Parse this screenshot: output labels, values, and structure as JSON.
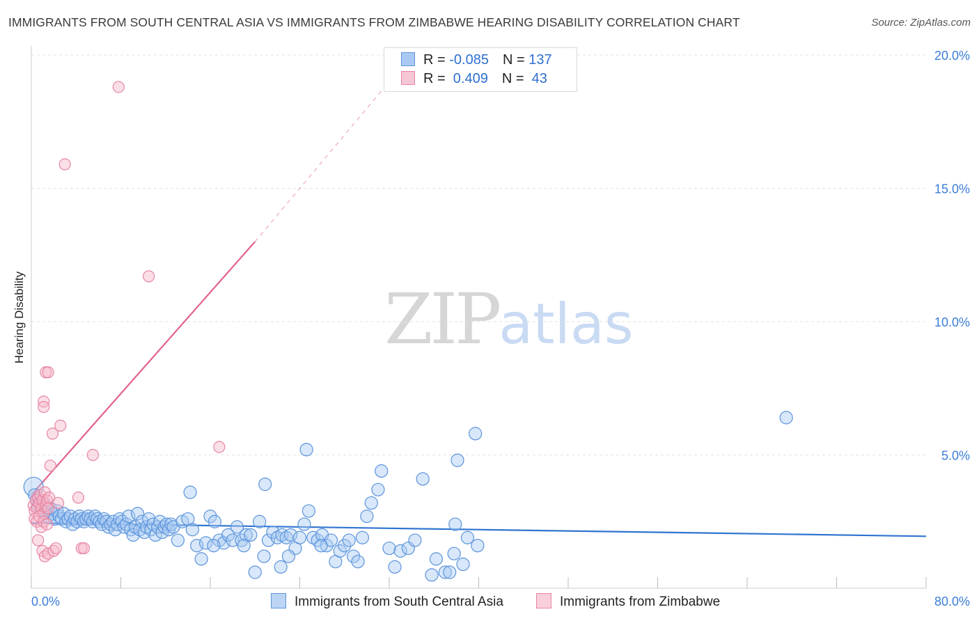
{
  "title": "IMMIGRANTS FROM SOUTH CENTRAL ASIA VS IMMIGRANTS FROM ZIMBABWE HEARING DISABILITY CORRELATION CHART",
  "source": "Source: ZipAtlas.com",
  "watermark": {
    "part1": "ZIP",
    "part2": "atlas"
  },
  "legend": {
    "row1": {
      "r_label": "R = ",
      "r_value": "-0.085",
      "n_label": "N = ",
      "n_value": "137"
    },
    "row2": {
      "r_label": "R = ",
      "r_value": " 0.409",
      "n_label": "N = ",
      "n_value": " 43"
    }
  },
  "colors": {
    "blue_fill": "#a9c9f2",
    "blue_stroke": "#5b94dc",
    "blue_line": "#2f74d0",
    "pink_fill": "#f7b8c9",
    "pink_stroke": "#e685a2",
    "pink_line": "#e2628c",
    "grid": "#e2e2e2",
    "axis_text": "#3b7dd8"
  },
  "chart_data": {
    "type": "scatter",
    "title": "IMMIGRANTS FROM SOUTH CENTRAL ASIA VS IMMIGRANTS FROM ZIMBABWE HEARING DISABILITY CORRELATION CHART",
    "xlabel": "",
    "ylabel": "Hearing Disability",
    "xlim": [
      0,
      80
    ],
    "ylim": [
      0,
      20
    ],
    "x_tick_labels": [
      "0.0%",
      "80.0%"
    ],
    "y_ticks": [
      5,
      10,
      15,
      20
    ],
    "y_tick_labels": [
      "5.0%",
      "10.0%",
      "15.0%",
      "20.0%"
    ],
    "grid": true,
    "series": [
      {
        "name": "Immigrants from South Central Asia",
        "color": "blue",
        "r": -0.085,
        "n": 137,
        "trend": {
          "x0": 0,
          "y0": 2.45,
          "x1": 80,
          "y1": 1.95
        },
        "points": [
          [
            0.2,
            3.8
          ],
          [
            0.3,
            3.5
          ],
          [
            0.5,
            3.3
          ],
          [
            0.6,
            3.1
          ],
          [
            0.8,
            3.0
          ],
          [
            1.0,
            2.9
          ],
          [
            1.1,
            3.2
          ],
          [
            1.3,
            2.8
          ],
          [
            1.5,
            2.7
          ],
          [
            1.7,
            3.0
          ],
          [
            1.9,
            2.8
          ],
          [
            2.1,
            2.6
          ],
          [
            2.3,
            2.9
          ],
          [
            2.5,
            2.7
          ],
          [
            2.7,
            2.6
          ],
          [
            2.9,
            2.8
          ],
          [
            3.1,
            2.5
          ],
          [
            3.3,
            2.6
          ],
          [
            3.5,
            2.7
          ],
          [
            3.7,
            2.4
          ],
          [
            3.9,
            2.6
          ],
          [
            4.1,
            2.5
          ],
          [
            4.3,
            2.7
          ],
          [
            4.5,
            2.6
          ],
          [
            4.7,
            2.5
          ],
          [
            4.9,
            2.6
          ],
          [
            5.1,
            2.7
          ],
          [
            5.3,
            2.6
          ],
          [
            5.5,
            2.5
          ],
          [
            5.7,
            2.7
          ],
          [
            5.9,
            2.6
          ],
          [
            6.1,
            2.5
          ],
          [
            6.3,
            2.4
          ],
          [
            6.5,
            2.6
          ],
          [
            6.7,
            2.5
          ],
          [
            6.9,
            2.3
          ],
          [
            7.1,
            2.4
          ],
          [
            7.3,
            2.5
          ],
          [
            7.5,
            2.2
          ],
          [
            7.7,
            2.4
          ],
          [
            7.9,
            2.6
          ],
          [
            8.1,
            2.5
          ],
          [
            8.3,
            2.3
          ],
          [
            8.5,
            2.4
          ],
          [
            8.7,
            2.7
          ],
          [
            8.9,
            2.2
          ],
          [
            9.1,
            2.0
          ],
          [
            9.3,
            2.3
          ],
          [
            9.5,
            2.8
          ],
          [
            9.7,
            2.2
          ],
          [
            9.9,
            2.5
          ],
          [
            10.1,
            2.1
          ],
          [
            10.3,
            2.3
          ],
          [
            10.5,
            2.6
          ],
          [
            10.7,
            2.2
          ],
          [
            10.9,
            2.4
          ],
          [
            11.1,
            2.0
          ],
          [
            11.3,
            2.3
          ],
          [
            11.5,
            2.5
          ],
          [
            11.7,
            2.1
          ],
          [
            11.9,
            2.3
          ],
          [
            12.1,
            2.4
          ],
          [
            12.3,
            2.2
          ],
          [
            12.5,
            2.4
          ],
          [
            12.7,
            2.3
          ],
          [
            13.1,
            1.8
          ],
          [
            13.5,
            2.5
          ],
          [
            14.0,
            2.6
          ],
          [
            14.4,
            2.2
          ],
          [
            14.8,
            1.6
          ],
          [
            15.2,
            1.1
          ],
          [
            15.6,
            1.7
          ],
          [
            16.0,
            2.7
          ],
          [
            16.4,
            2.5
          ],
          [
            16.8,
            1.8
          ],
          [
            17.2,
            1.7
          ],
          [
            17.6,
            2.0
          ],
          [
            18.0,
            1.8
          ],
          [
            18.4,
            2.3
          ],
          [
            18.8,
            1.8
          ],
          [
            19.2,
            2.0
          ],
          [
            19.6,
            2.0
          ],
          [
            20.0,
            0.6
          ],
          [
            20.4,
            2.5
          ],
          [
            20.8,
            1.2
          ],
          [
            21.2,
            1.8
          ],
          [
            21.6,
            2.1
          ],
          [
            22.0,
            1.9
          ],
          [
            22.4,
            2.0
          ],
          [
            22.8,
            1.9
          ],
          [
            23.2,
            2.0
          ],
          [
            23.6,
            1.5
          ],
          [
            24.0,
            1.9
          ],
          [
            24.4,
            2.4
          ],
          [
            24.8,
            2.9
          ],
          [
            25.2,
            1.9
          ],
          [
            25.6,
            1.8
          ],
          [
            26.0,
            2.0
          ],
          [
            26.4,
            1.6
          ],
          [
            26.8,
            1.8
          ],
          [
            27.2,
            1.0
          ],
          [
            27.6,
            1.4
          ],
          [
            28.0,
            1.6
          ],
          [
            28.4,
            1.8
          ],
          [
            28.8,
            1.2
          ],
          [
            29.2,
            1.0
          ],
          [
            29.6,
            1.9
          ],
          [
            30.0,
            2.7
          ],
          [
            30.4,
            3.2
          ],
          [
            31.0,
            3.7
          ],
          [
            31.3,
            4.4
          ],
          [
            32.0,
            1.5
          ],
          [
            32.5,
            0.8
          ],
          [
            33.0,
            1.4
          ],
          [
            33.7,
            1.5
          ],
          [
            34.3,
            1.8
          ],
          [
            35.0,
            4.1
          ],
          [
            35.8,
            0.5
          ],
          [
            36.2,
            1.1
          ],
          [
            37.0,
            0.6
          ],
          [
            37.4,
            0.6
          ],
          [
            37.8,
            1.3
          ],
          [
            38.1,
            4.8
          ],
          [
            38.6,
            0.9
          ],
          [
            37.9,
            2.4
          ],
          [
            39.0,
            1.9
          ],
          [
            39.9,
            1.6
          ],
          [
            39.7,
            5.8
          ],
          [
            67.5,
            6.4
          ],
          [
            19.0,
            1.6
          ],
          [
            22.3,
            0.8
          ],
          [
            23.0,
            1.2
          ],
          [
            25.9,
            1.6
          ],
          [
            14.2,
            3.6
          ],
          [
            16.3,
            1.6
          ],
          [
            20.9,
            3.9
          ],
          [
            24.6,
            5.2
          ]
        ]
      },
      {
        "name": "Immigrants from Zimbabwe",
        "color": "pink",
        "r": 0.409,
        "n": 43,
        "trend": {
          "x0": 0,
          "y0": 3.5,
          "x1": 20,
          "y1": 13.0,
          "extend_to": {
            "x": 32,
            "y": 19.0
          }
        },
        "points": [
          [
            0.2,
            3.1
          ],
          [
            0.3,
            2.9
          ],
          [
            0.4,
            3.3
          ],
          [
            0.5,
            3.0
          ],
          [
            0.6,
            3.4
          ],
          [
            0.7,
            3.2
          ],
          [
            0.8,
            3.5
          ],
          [
            0.9,
            3.0
          ],
          [
            1.0,
            3.3
          ],
          [
            1.1,
            2.8
          ],
          [
            1.2,
            3.6
          ],
          [
            1.3,
            3.1
          ],
          [
            1.4,
            3.3
          ],
          [
            1.5,
            3.0
          ],
          [
            1.6,
            3.4
          ],
          [
            0.3,
            2.6
          ],
          [
            0.5,
            2.5
          ],
          [
            0.7,
            2.7
          ],
          [
            0.9,
            2.3
          ],
          [
            1.1,
            2.5
          ],
          [
            1.4,
            2.4
          ],
          [
            0.6,
            1.8
          ],
          [
            1.0,
            1.4
          ],
          [
            1.2,
            1.2
          ],
          [
            1.5,
            1.3
          ],
          [
            2.0,
            1.4
          ],
          [
            2.2,
            1.5
          ],
          [
            4.5,
            1.5
          ],
          [
            4.7,
            1.5
          ],
          [
            1.1,
            7.0
          ],
          [
            1.1,
            6.8
          ],
          [
            1.3,
            8.1
          ],
          [
            1.5,
            8.1
          ],
          [
            2.6,
            6.1
          ],
          [
            1.9,
            5.8
          ],
          [
            1.7,
            4.6
          ],
          [
            2.4,
            3.2
          ],
          [
            4.2,
            3.4
          ],
          [
            5.5,
            5.0
          ],
          [
            16.8,
            5.3
          ],
          [
            7.8,
            18.8
          ],
          [
            3.0,
            15.9
          ],
          [
            10.5,
            11.7
          ]
        ]
      }
    ]
  },
  "bottom_legend": {
    "item1": "Immigrants from South Central Asia",
    "item2": "Immigrants from Zimbabwe"
  }
}
